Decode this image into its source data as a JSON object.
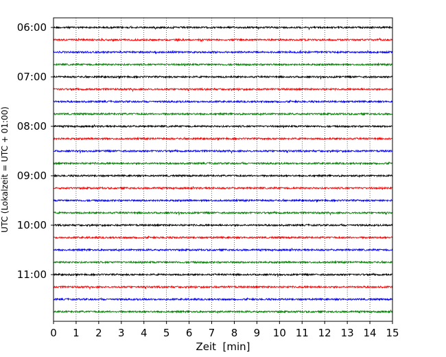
{
  "chart_data": {
    "type": "line",
    "title": "",
    "xlabel": "Zeit  [min]",
    "ylabel": "UTC (Lokalzeit = UTC + 01:00)",
    "xlim": [
      0,
      15
    ],
    "x_ticks": [
      "0",
      "1",
      "2",
      "3",
      "4",
      "5",
      "6",
      "7",
      "8",
      "9",
      "10",
      "11",
      "12",
      "13",
      "14",
      "15"
    ],
    "y_tick_labels": [
      "06:00",
      "07:00",
      "08:00",
      "09:00",
      "10:00",
      "11:00"
    ],
    "grid": "vertical dotted",
    "trace_interval_minutes": 15,
    "trace_start": "06:00",
    "trace_count": 24,
    "trace_colors": [
      "#000000",
      "#ff0000",
      "#0000ff",
      "#008000"
    ],
    "series": [
      {
        "start": "06:00",
        "color": "#000000"
      },
      {
        "start": "06:15",
        "color": "#ff0000"
      },
      {
        "start": "06:30",
        "color": "#0000ff"
      },
      {
        "start": "06:45",
        "color": "#008000"
      },
      {
        "start": "07:00",
        "color": "#000000"
      },
      {
        "start": "07:15",
        "color": "#ff0000"
      },
      {
        "start": "07:30",
        "color": "#0000ff"
      },
      {
        "start": "07:45",
        "color": "#008000"
      },
      {
        "start": "08:00",
        "color": "#000000"
      },
      {
        "start": "08:15",
        "color": "#ff0000"
      },
      {
        "start": "08:30",
        "color": "#0000ff"
      },
      {
        "start": "08:45",
        "color": "#008000"
      },
      {
        "start": "09:00",
        "color": "#000000"
      },
      {
        "start": "09:15",
        "color": "#ff0000"
      },
      {
        "start": "09:30",
        "color": "#0000ff"
      },
      {
        "start": "09:45",
        "color": "#008000"
      },
      {
        "start": "10:00",
        "color": "#000000"
      },
      {
        "start": "10:15",
        "color": "#ff0000"
      },
      {
        "start": "10:30",
        "color": "#0000ff"
      },
      {
        "start": "10:45",
        "color": "#008000"
      },
      {
        "start": "11:00",
        "color": "#000000"
      },
      {
        "start": "11:15",
        "color": "#ff0000"
      },
      {
        "start": "11:30",
        "color": "#0000ff"
      },
      {
        "start": "11:45",
        "color": "#008000"
      }
    ]
  }
}
